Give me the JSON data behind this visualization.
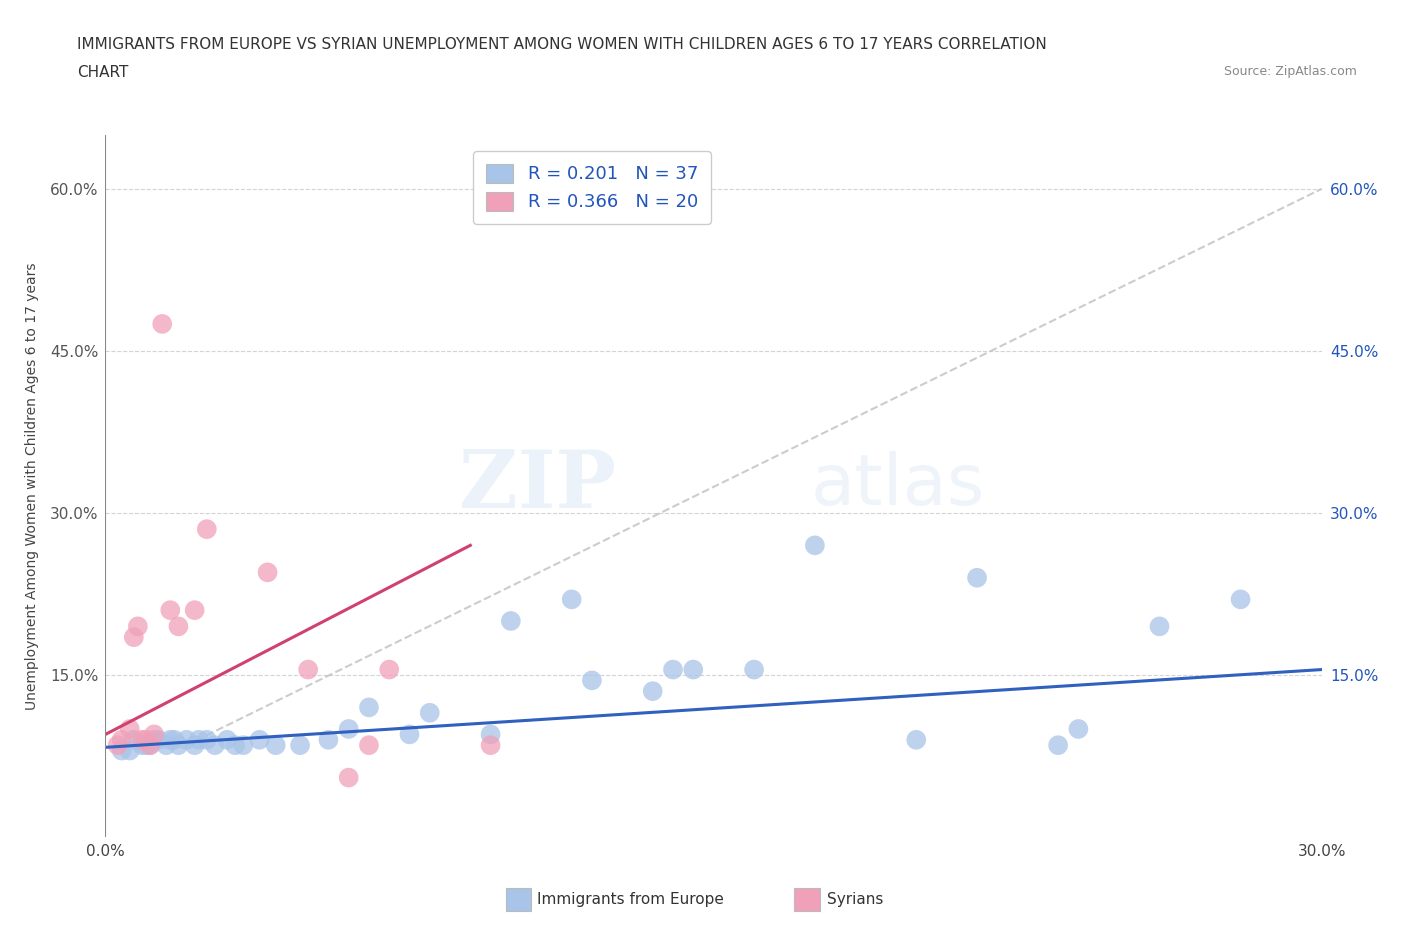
{
  "title_line1": "IMMIGRANTS FROM EUROPE VS SYRIAN UNEMPLOYMENT AMONG WOMEN WITH CHILDREN AGES 6 TO 17 YEARS CORRELATION",
  "title_line2": "CHART",
  "source": "Source: ZipAtlas.com",
  "ylabel": "Unemployment Among Women with Children Ages 6 to 17 years",
  "xmin": 0.0,
  "xmax": 0.3,
  "ymin": 0.0,
  "ymax": 0.65,
  "ytick_values": [
    0.15,
    0.3,
    0.45,
    0.6
  ],
  "ytick_labels": [
    "15.0%",
    "30.0%",
    "45.0%",
    "60.0%"
  ],
  "europe_R": "0.201",
  "europe_N": "37",
  "syrian_R": "0.366",
  "syrian_N": "20",
  "europe_color": "#a8c4e8",
  "syrian_color": "#f0a0b8",
  "europe_line_color": "#3060c0",
  "syrian_line_color": "#d04070",
  "ref_line_color": "#c0c0c0",
  "legend_text_color": "#2255bb",
  "background_color": "#ffffff",
  "watermark_zip": "ZIP",
  "watermark_atlas": "atlas",
  "europe_scatter_x": [
    0.004,
    0.006,
    0.007,
    0.009,
    0.01,
    0.011,
    0.012,
    0.013,
    0.015,
    0.016,
    0.017,
    0.018,
    0.02,
    0.022,
    0.023,
    0.025,
    0.027,
    0.03,
    0.032,
    0.034,
    0.038,
    0.042,
    0.048,
    0.055,
    0.06,
    0.065,
    0.075,
    0.08,
    0.095,
    0.1,
    0.115,
    0.12,
    0.135,
    0.145,
    0.16,
    0.175,
    0.2,
    0.215,
    0.14,
    0.235,
    0.24,
    0.26,
    0.28
  ],
  "europe_scatter_y": [
    0.08,
    0.08,
    0.09,
    0.085,
    0.085,
    0.085,
    0.09,
    0.09,
    0.085,
    0.09,
    0.09,
    0.085,
    0.09,
    0.085,
    0.09,
    0.09,
    0.085,
    0.09,
    0.085,
    0.085,
    0.09,
    0.085,
    0.085,
    0.09,
    0.1,
    0.12,
    0.095,
    0.115,
    0.095,
    0.2,
    0.22,
    0.145,
    0.135,
    0.155,
    0.155,
    0.27,
    0.09,
    0.24,
    0.155,
    0.085,
    0.1,
    0.195,
    0.22
  ],
  "syrian_scatter_x": [
    0.003,
    0.004,
    0.006,
    0.007,
    0.008,
    0.009,
    0.01,
    0.011,
    0.012,
    0.014,
    0.016,
    0.018,
    0.022,
    0.025,
    0.04,
    0.05,
    0.06,
    0.065,
    0.07,
    0.095
  ],
  "syrian_scatter_y": [
    0.085,
    0.09,
    0.1,
    0.185,
    0.195,
    0.09,
    0.09,
    0.085,
    0.095,
    0.475,
    0.21,
    0.195,
    0.21,
    0.285,
    0.245,
    0.155,
    0.055,
    0.085,
    0.155,
    0.085
  ],
  "europe_trend_x": [
    0.0,
    0.3
  ],
  "europe_trend_y": [
    0.083,
    0.155
  ],
  "syrian_trend_x": [
    0.0,
    0.09
  ],
  "syrian_trend_y": [
    0.095,
    0.27
  ],
  "ref_line_x": [
    0.02,
    0.3
  ],
  "ref_line_y": [
    0.085,
    0.6
  ]
}
